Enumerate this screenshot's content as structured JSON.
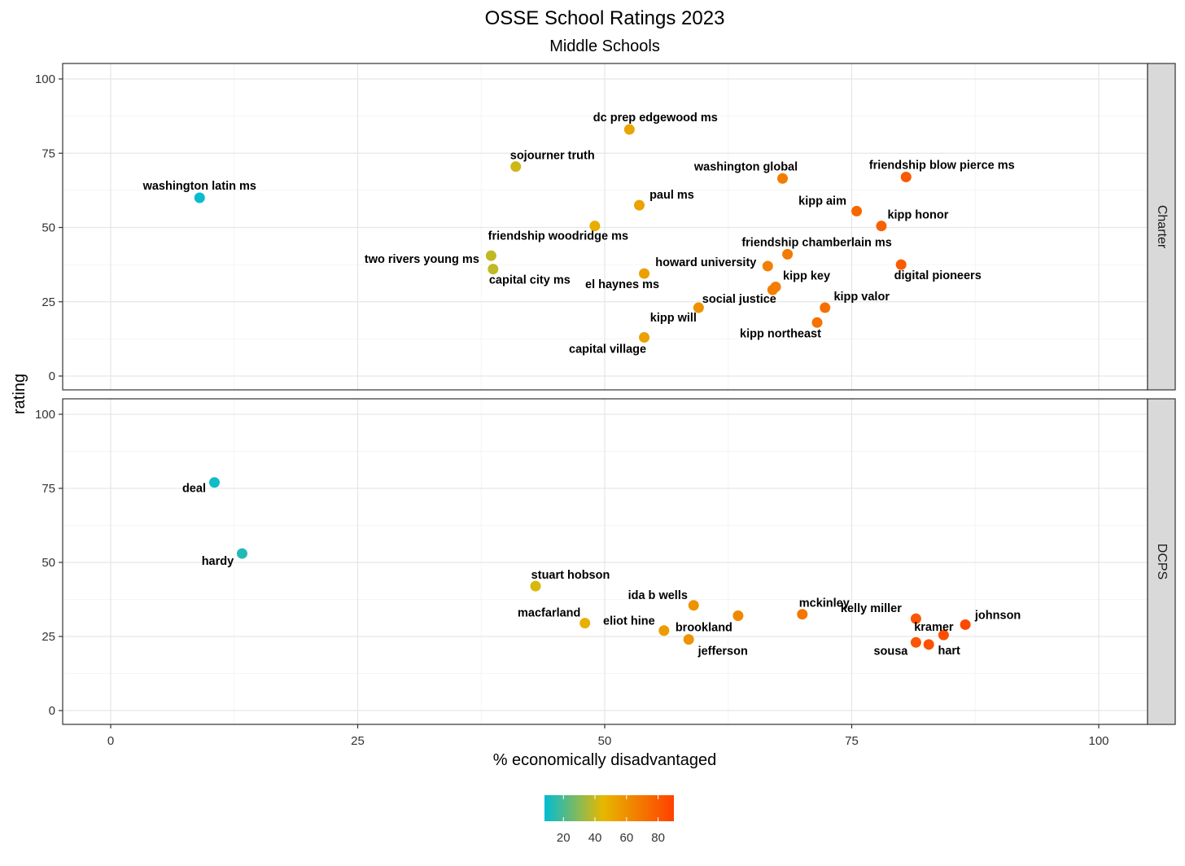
{
  "chart_data": {
    "type": "scatter",
    "title": "OSSE School Ratings 2023",
    "subtitle": "Middle Schools",
    "xlabel": "% economically disadvantaged",
    "ylabel": "rating",
    "xlim": [
      0,
      100
    ],
    "ylim": [
      0,
      100
    ],
    "x_ticks": [
      "0",
      "25",
      "50",
      "75",
      "100"
    ],
    "y_ticks": [
      "0",
      "25",
      "50",
      "75",
      "100"
    ],
    "grid": true,
    "facets": [
      {
        "name": "Charter",
        "points": [
          {
            "label": "washington latin ms",
            "x": 9,
            "y": 60
          },
          {
            "label": "dc prep edgewood ms",
            "x": 52.5,
            "y": 83
          },
          {
            "label": "sojourner truth",
            "x": 41,
            "y": 70.5
          },
          {
            "label": "washington global",
            "x": 68,
            "y": 66.5
          },
          {
            "label": "friendship blow pierce ms",
            "x": 80.5,
            "y": 67
          },
          {
            "label": "paul ms",
            "x": 53.5,
            "y": 57.5
          },
          {
            "label": "kipp aim",
            "x": 75.5,
            "y": 55.5
          },
          {
            "label": "kipp honor",
            "x": 78,
            "y": 50.5
          },
          {
            "label": "friendship woodridge ms",
            "x": 49,
            "y": 50.5
          },
          {
            "label": "friendship chamberlain ms",
            "x": 68.5,
            "y": 41
          },
          {
            "label": "two rivers young ms",
            "x": 38.5,
            "y": 40.5
          },
          {
            "label": "capital city ms",
            "x": 38.7,
            "y": 36
          },
          {
            "label": "howard university",
            "x": 66.5,
            "y": 37
          },
          {
            "label": "digital pioneers",
            "x": 80,
            "y": 37.5
          },
          {
            "label": "el haynes ms",
            "x": 54,
            "y": 34.5
          },
          {
            "label": "kipp key",
            "x": 67.3,
            "y": 30
          },
          {
            "label": "social justice",
            "x": 59.5,
            "y": 23
          },
          {
            "label": "kipp valor",
            "x": 72.3,
            "y": 23
          },
          {
            "label": "kipp will",
            "x": 67,
            "y": 29
          },
          {
            "label": "kipp northeast",
            "x": 71.5,
            "y": 18
          },
          {
            "label": "capital village",
            "x": 54,
            "y": 13
          }
        ]
      },
      {
        "name": "DCPS",
        "points": [
          {
            "label": "deal",
            "x": 10.5,
            "y": 77
          },
          {
            "label": "hardy",
            "x": 13.3,
            "y": 53
          },
          {
            "label": "stuart hobson",
            "x": 43,
            "y": 42
          },
          {
            "label": "ida b wells",
            "x": 59,
            "y": 35.5
          },
          {
            "label": "mckinley",
            "x": 70,
            "y": 32.5
          },
          {
            "label": "macfarland",
            "x": 48,
            "y": 29.5
          },
          {
            "label": "eliot hine",
            "x": 56,
            "y": 27
          },
          {
            "label": "brookland",
            "x": 63.5,
            "y": 32
          },
          {
            "label": "jefferson",
            "x": 58.5,
            "y": 24
          },
          {
            "label": "kelly miller",
            "x": 81.5,
            "y": 31
          },
          {
            "label": "johnson",
            "x": 86.5,
            "y": 29
          },
          {
            "label": "kramer",
            "x": 84.3,
            "y": 25.5
          },
          {
            "label": "sousa",
            "x": 81.5,
            "y": 23
          },
          {
            "label": "hart",
            "x": 82.8,
            "y": 22.3
          }
        ]
      }
    ],
    "legend": {
      "position": "bottom",
      "range": [
        8,
        90
      ],
      "ticks": [
        "20",
        "40",
        "60",
        "80"
      ],
      "colors": [
        "#00BCD4",
        "#E6B800",
        "#FF4000"
      ]
    }
  }
}
